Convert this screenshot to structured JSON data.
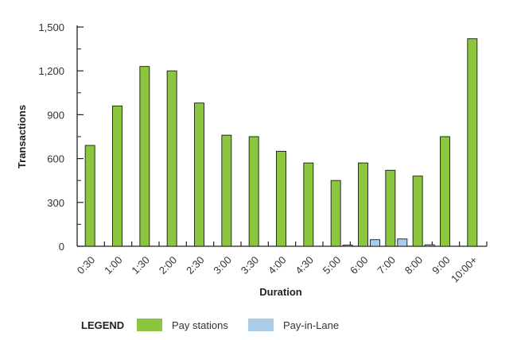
{
  "chart_data": {
    "type": "bar",
    "title": "",
    "xlabel": "Duration",
    "ylabel": "Transactions",
    "categories": [
      "0:30",
      "1:00",
      "1:30",
      "2:00",
      "2:30",
      "3:00",
      "3:30",
      "4:00",
      "4:30",
      "5:00",
      "6:00",
      "7:00",
      "8:00",
      "9:00",
      "10:00+"
    ],
    "series": [
      {
        "name": "Pay stations",
        "color": "#8cc63f",
        "values": [
          690,
          960,
          1230,
          1200,
          980,
          760,
          750,
          650,
          570,
          450,
          570,
          520,
          480,
          750,
          1420
        ]
      },
      {
        "name": "Pay-in-Lane",
        "color": "#a9cde9",
        "values": [
          0,
          0,
          0,
          0,
          0,
          0,
          0,
          0,
          0,
          8,
          45,
          50,
          10,
          0,
          0
        ]
      }
    ],
    "yticks": [
      0,
      300,
      600,
      900,
      1200,
      1500
    ],
    "ytick_labels": [
      "0",
      "300",
      "600",
      "900",
      "1,200",
      "1,500"
    ],
    "ylim": [
      0,
      1500
    ],
    "grid": false,
    "legend": {
      "title": "LEGEND",
      "placement": "bottom-left"
    }
  }
}
